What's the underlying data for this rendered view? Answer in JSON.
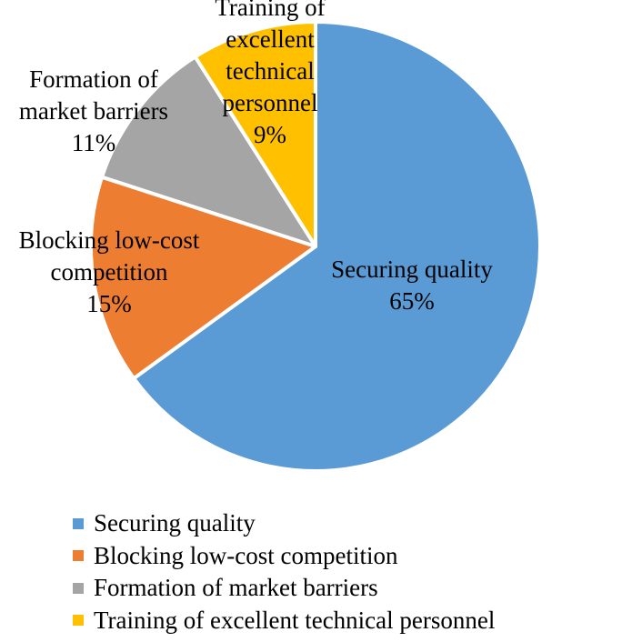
{
  "chart_data": {
    "type": "pie",
    "title": "",
    "legend_position": "bottom",
    "slices": [
      {
        "name": "Securing quality",
        "value": 65,
        "value_label": "65%",
        "color": "#5B9BD5",
        "label_lines": [
          "Securing quality"
        ]
      },
      {
        "name": "Blocking low-cost competition",
        "value": 15,
        "value_label": "15%",
        "color": "#ED7D31",
        "label_lines": [
          "Blocking low-cost",
          "competition"
        ]
      },
      {
        "name": "Formation of market barriers",
        "value": 11,
        "value_label": "11%",
        "color": "#A5A5A5",
        "label_lines": [
          "Formation of",
          "market barriers"
        ]
      },
      {
        "name": "Training of excellent technical personnel",
        "value": 9,
        "value_label": "9%",
        "color": "#FFC000",
        "label_lines": [
          "Training of",
          "excellent",
          "technical",
          "personnel"
        ]
      }
    ]
  }
}
